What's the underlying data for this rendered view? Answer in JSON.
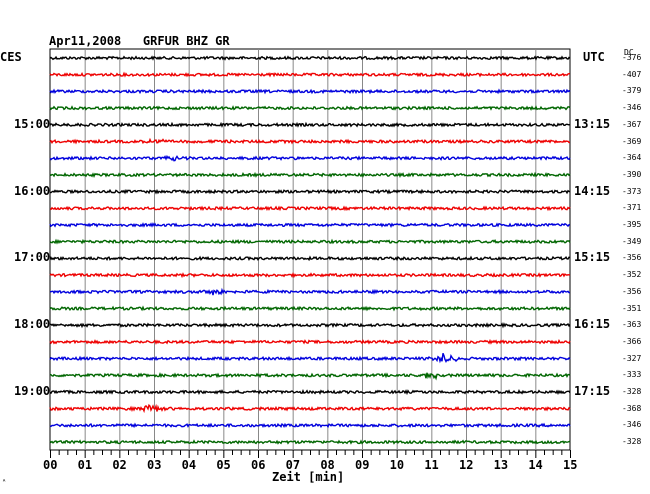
{
  "header": {
    "title": "Apr11,2008   GRFUR BHZ GR",
    "left_tz": "CES",
    "right_tz": "UTC",
    "dc_label": "DC"
  },
  "chart_data": {
    "type": "line",
    "xlabel": "Zeit [min]",
    "xlim": [
      0,
      15
    ],
    "x_ticks": [
      "00",
      "01",
      "02",
      "03",
      "04",
      "05",
      "06",
      "07",
      "08",
      "09",
      "10",
      "11",
      "12",
      "13",
      "14",
      "15"
    ],
    "left_hour_labels": [
      "15:00",
      "16:00",
      "17:00",
      "18:00",
      "19:00"
    ],
    "right_hour_labels": [
      "13:15",
      "14:15",
      "15:15",
      "16:15",
      "17:15"
    ],
    "trace_colors": [
      "#000000",
      "#ee0000",
      "#0000dd",
      "#006600"
    ],
    "dc_offsets": [
      -376,
      -407,
      -379,
      -346,
      -367,
      -369,
      -364,
      -390,
      -373,
      -371,
      -395,
      -349,
      -356,
      -352,
      -356,
      -351,
      -363,
      -366,
      -327,
      -333,
      -328,
      -368,
      -346,
      -328
    ],
    "events": [
      {
        "trace": 5,
        "minute": 3.0,
        "amplitude": 2.0
      },
      {
        "trace": 6,
        "minute": 3.6,
        "amplitude": 1.5
      },
      {
        "trace": 14,
        "minute": 4.7,
        "amplitude": 2.5
      },
      {
        "trace": 18,
        "minute": 11.4,
        "amplitude": 5.0
      },
      {
        "trace": 19,
        "minute": 11.0,
        "amplitude": 4.0
      },
      {
        "trace": 21,
        "minute": 2.9,
        "amplitude": 3.0
      }
    ],
    "grid": true
  },
  "footer": {
    "tiny_mark": "ᴬ"
  }
}
